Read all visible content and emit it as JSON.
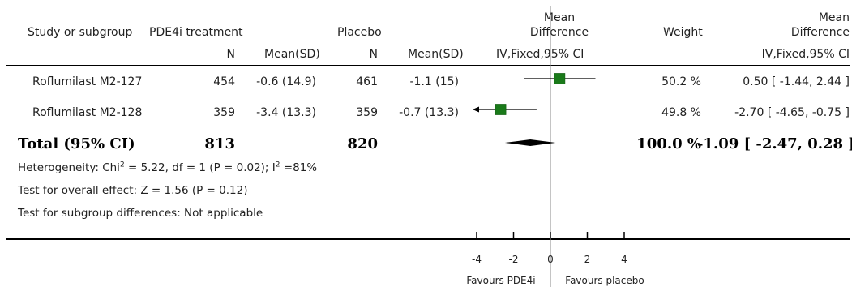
{
  "chart_data": {
    "type": "forest",
    "headers": {
      "study": "Study or subgroup",
      "group1": "PDE4i treatment",
      "group2": "Placebo",
      "md_plot_line1": "Mean",
      "md_plot_line2": "Difference",
      "md_plot_line3": "IV,Fixed,95% CI",
      "weight": "Weight",
      "md_line1": "Mean",
      "md_line2": "Difference",
      "md_line3": "IV,Fixed,95% CI",
      "n": "N",
      "mean_sd": "Mean(SD)"
    },
    "studies": [
      {
        "name": "Roflumilast M2-127",
        "n1": "454",
        "meansd1": "-0.6 (14.9)",
        "n2": "461",
        "meansd2": "-1.1 (15)",
        "weight_label": "50.2 %",
        "ci_label": "0.50 [ -1.44, 2.44 ]",
        "md": 0.5,
        "lo": -1.44,
        "hi": 2.44,
        "weight": 50.2
      },
      {
        "name": "Roflumilast M2-128",
        "n1": "359",
        "meansd1": "-3.4 (13.3)",
        "n2": "359",
        "meansd2": "-0.7 (13.3)",
        "weight_label": "49.8 %",
        "ci_label": "-2.70 [ -4.65, -0.75 ]",
        "md": -2.7,
        "lo": -4.65,
        "hi": -0.75,
        "weight": 49.8
      }
    ],
    "total": {
      "label": "Total (95% CI)",
      "n1": "813",
      "n2": "820",
      "weight_label": "100.0 %",
      "ci_label": "-1.09 [ -2.47, 0.28 ]",
      "md": -1.09,
      "lo": -2.47,
      "hi": 0.28
    },
    "heterogeneity": {
      "prefix": "Heterogeneity: Chi",
      "sup1": "2",
      "middle": " = 5.22, df = 1 (P = 0.02); I",
      "sup2": "2",
      "suffix": " =81%"
    },
    "overall_effect": "Test for overall effect: Z = 1.56 (P = 0.12)",
    "subgroup_diff": "Test for subgroup differences: Not applicable",
    "axis": {
      "xlim": [
        -4,
        4
      ],
      "ticks": [
        -4,
        -2,
        0,
        2,
        4
      ],
      "tick_labels": [
        "-4",
        "-2",
        "0",
        "2",
        "4"
      ],
      "left_label": "Favours PDE4i",
      "right_label": "Favours placebo"
    },
    "colors": {
      "marker": "#1a7a1a",
      "diamond": "#000000",
      "line": "#000000"
    }
  }
}
